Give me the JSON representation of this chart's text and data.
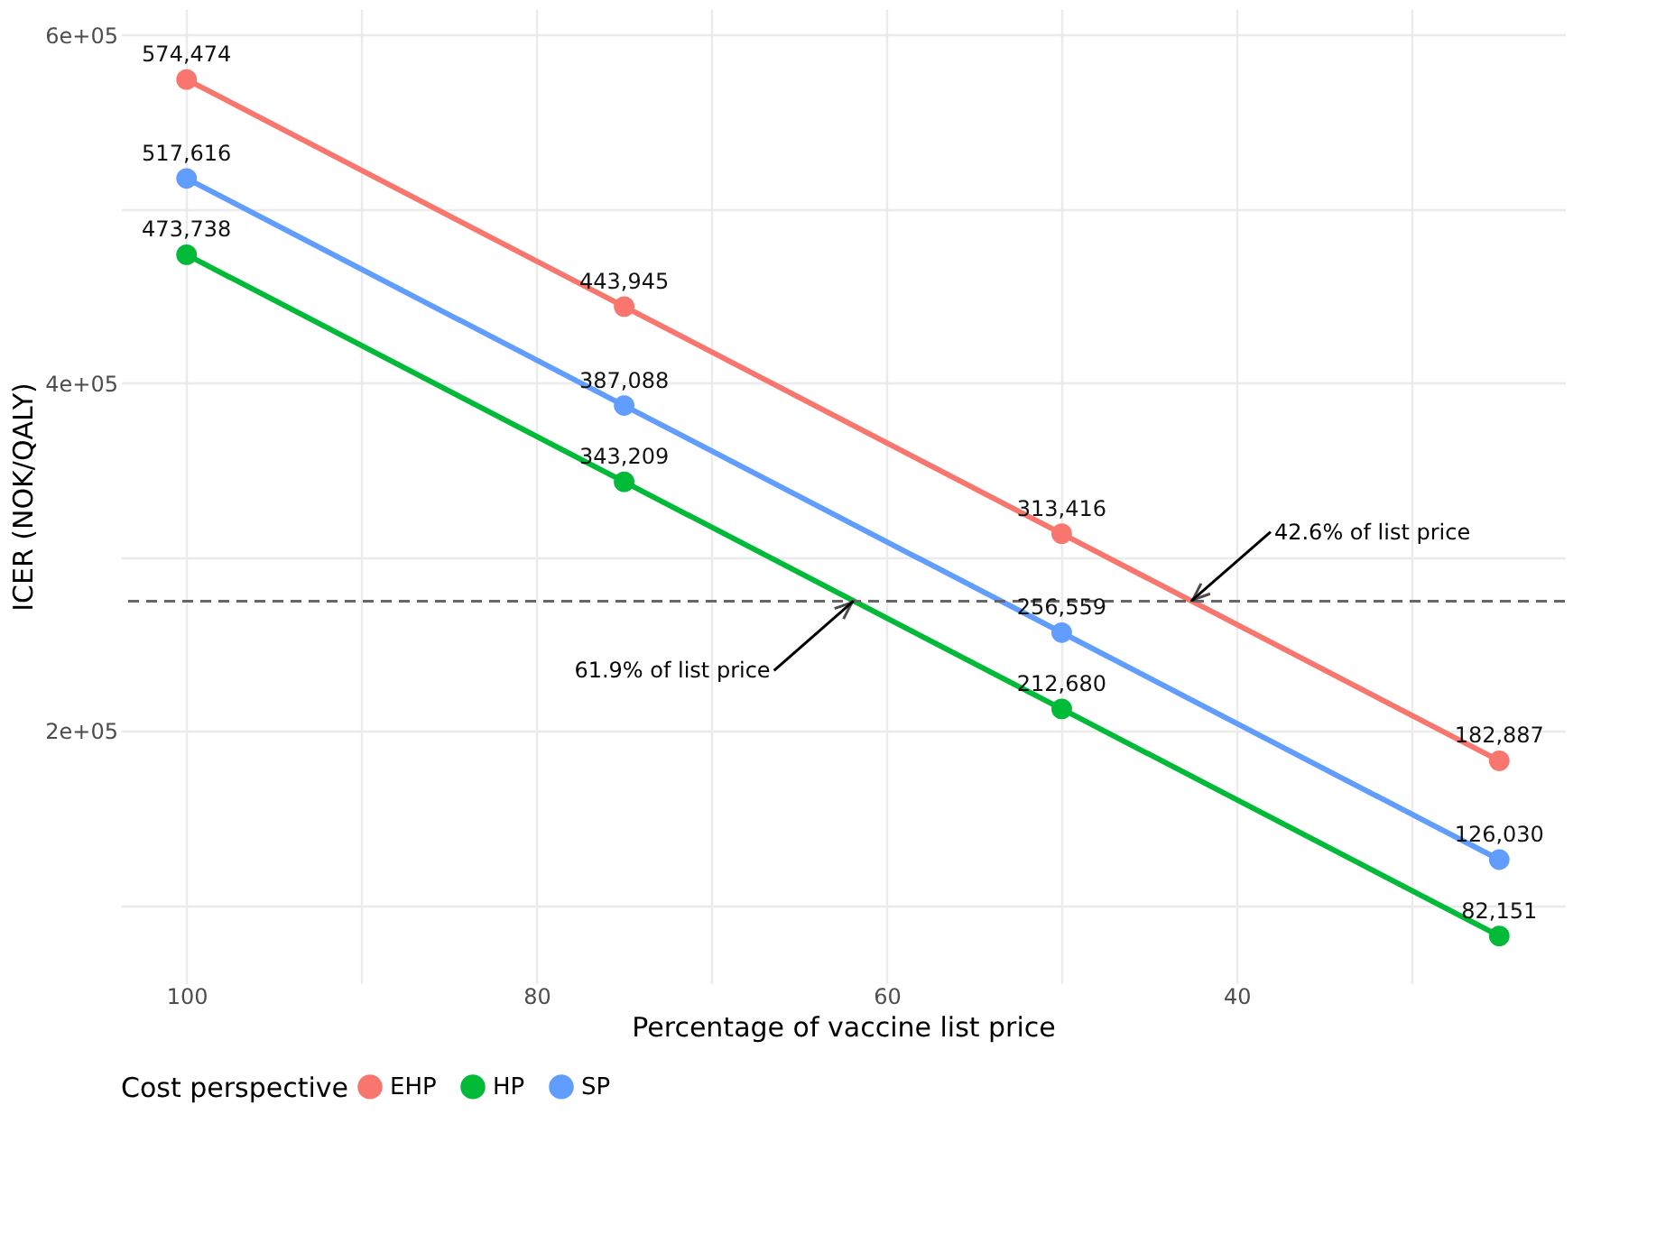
{
  "chart_data": {
    "type": "line",
    "xlabel": "Percentage of vaccine list price",
    "ylabel": "ICER (NOK/QALY)",
    "legend_title": "Cost perspective",
    "legend": "bottom",
    "marker": "circle",
    "line_style": "solid",
    "grid": true,
    "x": [
      100,
      75,
      50,
      25
    ],
    "xlim": [
      103.75,
      21.25
    ],
    "xticks": [
      100,
      {
        "value": 90,
        "label": null
      },
      80,
      {
        "value": 70,
        "label": null
      },
      60,
      {
        "value": 50,
        "label": null
      },
      40,
      {
        "value": 30,
        "label": null
      }
    ],
    "ylim": [
      55000,
      615000
    ],
    "yticks": [
      {
        "value": 100000,
        "label": null
      },
      {
        "value": 200000,
        "label": "2e+05"
      },
      {
        "value": 300000,
        "label": null
      },
      {
        "value": 400000,
        "label": "4e+05"
      },
      {
        "value": 500000,
        "label": null
      },
      {
        "value": 600000,
        "label": "6e+05"
      }
    ],
    "series": [
      {
        "name": "EHP",
        "color": "#f8766d",
        "values": [
          574474,
          443945,
          313416,
          182887
        ],
        "value_labels": [
          "574,474",
          "443,945",
          "313,416",
          "182,887"
        ]
      },
      {
        "name": "HP",
        "color": "#00ba38",
        "values": [
          473738,
          343209,
          212680,
          82151
        ],
        "value_labels": [
          "473,738",
          "343,209",
          "212,680",
          "82,151"
        ]
      },
      {
        "name": "SP",
        "color": "#619cff",
        "values": [
          517616,
          387088,
          256559,
          126030
        ],
        "value_labels": [
          "517,616",
          "387,088",
          "256,559",
          "126,030"
        ]
      }
    ],
    "ref_lines": [
      {
        "axis": "y",
        "value": 274600,
        "label": null,
        "color": "#666666",
        "line_style": "dashed"
      }
    ],
    "annotations": [
      {
        "text": "42.6% of list price",
        "x": 42.6,
        "y": 274600
      },
      {
        "text": "61.9% of list price",
        "x": 61.9,
        "y": 274600
      }
    ]
  }
}
